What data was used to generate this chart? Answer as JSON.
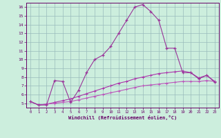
{
  "x": [
    0,
    1,
    2,
    3,
    4,
    5,
    6,
    7,
    8,
    9,
    10,
    11,
    12,
    13,
    14,
    15,
    16,
    17,
    18,
    19,
    20,
    21,
    22,
    23
  ],
  "line1": [
    5.2,
    4.8,
    4.8,
    7.6,
    7.5,
    5.1,
    6.5,
    8.5,
    10.0,
    10.5,
    11.5,
    13.0,
    14.5,
    16.0,
    16.3,
    15.5,
    14.5,
    11.3,
    11.3,
    8.5,
    8.5,
    7.8,
    8.2,
    7.4
  ],
  "line2": [
    5.2,
    4.8,
    4.9,
    5.1,
    5.3,
    5.5,
    5.8,
    6.1,
    6.4,
    6.7,
    7.0,
    7.3,
    7.5,
    7.8,
    8.0,
    8.2,
    8.4,
    8.5,
    8.6,
    8.7,
    8.5,
    7.9,
    8.2,
    7.5
  ],
  "line3": [
    5.2,
    4.8,
    4.9,
    5.0,
    5.1,
    5.2,
    5.4,
    5.6,
    5.8,
    6.0,
    6.2,
    6.4,
    6.6,
    6.8,
    7.0,
    7.1,
    7.2,
    7.3,
    7.4,
    7.5,
    7.5,
    7.5,
    7.6,
    7.5
  ],
  "color1": "#993399",
  "color2": "#aa33aa",
  "color3": "#bb55bb",
  "bg_color": "#cceedd",
  "grid_color": "#99bbbb",
  "xlabel": "Windchill (Refroidissement éolien,°C)",
  "ylim": [
    4.5,
    16.5
  ],
  "xlim": [
    -0.5,
    23.5
  ],
  "yticks": [
    5,
    6,
    7,
    8,
    9,
    10,
    11,
    12,
    13,
    14,
    15,
    16
  ],
  "xticks": [
    0,
    1,
    2,
    3,
    4,
    5,
    6,
    7,
    8,
    9,
    10,
    11,
    12,
    13,
    14,
    15,
    16,
    17,
    18,
    19,
    20,
    21,
    22,
    23
  ],
  "tick_color": "#660066",
  "spine_color": "#660066"
}
